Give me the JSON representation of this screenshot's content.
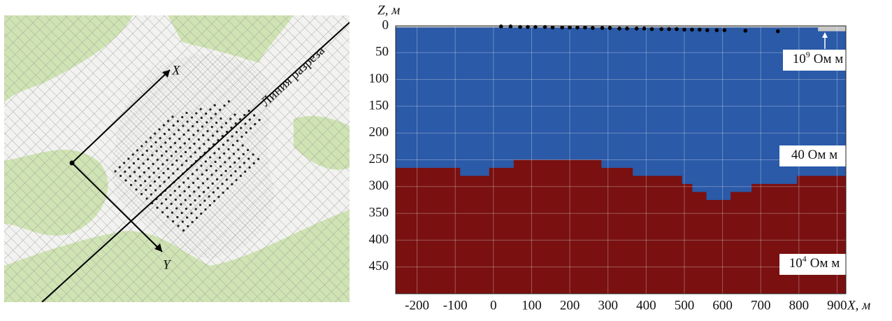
{
  "map": {
    "x_axis_label": "X",
    "y_axis_label": "Y",
    "section_line_label": "Линия разреза"
  },
  "chart_data": {
    "type": "section",
    "ylabel": "Z, м",
    "xlabel": "X, м",
    "xlim": [
      -256,
      923
    ],
    "ylim": [
      0,
      500
    ],
    "xticks": [
      -200,
      -100,
      0,
      100,
      200,
      300,
      400,
      500,
      600,
      700,
      800,
      900
    ],
    "yticks": [
      0,
      50,
      100,
      150,
      200,
      250,
      300,
      350,
      400,
      450
    ],
    "grid": true,
    "layer_color": "#2a5aa8",
    "boundary": {
      "color": "#7a1010",
      "x": [
        -256,
        -88,
        -11,
        53,
        282,
        364,
        493,
        520,
        557,
        621,
        676,
        795,
        923
      ],
      "depth": [
        265,
        280,
        265,
        250,
        265,
        280,
        295,
        310,
        325,
        310,
        295,
        280
      ]
    },
    "surface_layer": {
      "color": "#c8c8c8",
      "x": [
        -256,
        850,
        923
      ],
      "depth": [
        3,
        10
      ]
    },
    "electrodes": {
      "color": "#000000",
      "x": [
        20,
        45,
        70,
        90,
        110,
        135,
        155,
        180,
        200,
        220,
        240,
        260,
        285,
        305,
        330,
        350,
        375,
        395,
        415,
        440,
        460,
        480,
        500,
        520,
        540,
        560,
        585,
        605,
        660,
        745
      ],
      "z": [
        1,
        1,
        2,
        2,
        2,
        2,
        3,
        3,
        3,
        3,
        3,
        4,
        4,
        4,
        5,
        5,
        5,
        5,
        6,
        6,
        6,
        6,
        7,
        7,
        7,
        8,
        8,
        8,
        9,
        10
      ]
    },
    "annotations": [
      {
        "text": "10",
        "sup": "9",
        "suffix": "Ом м"
      },
      {
        "text": "40 Ом м"
      },
      {
        "text": "10",
        "sup": "4",
        "suffix": "Ом м"
      }
    ]
  }
}
